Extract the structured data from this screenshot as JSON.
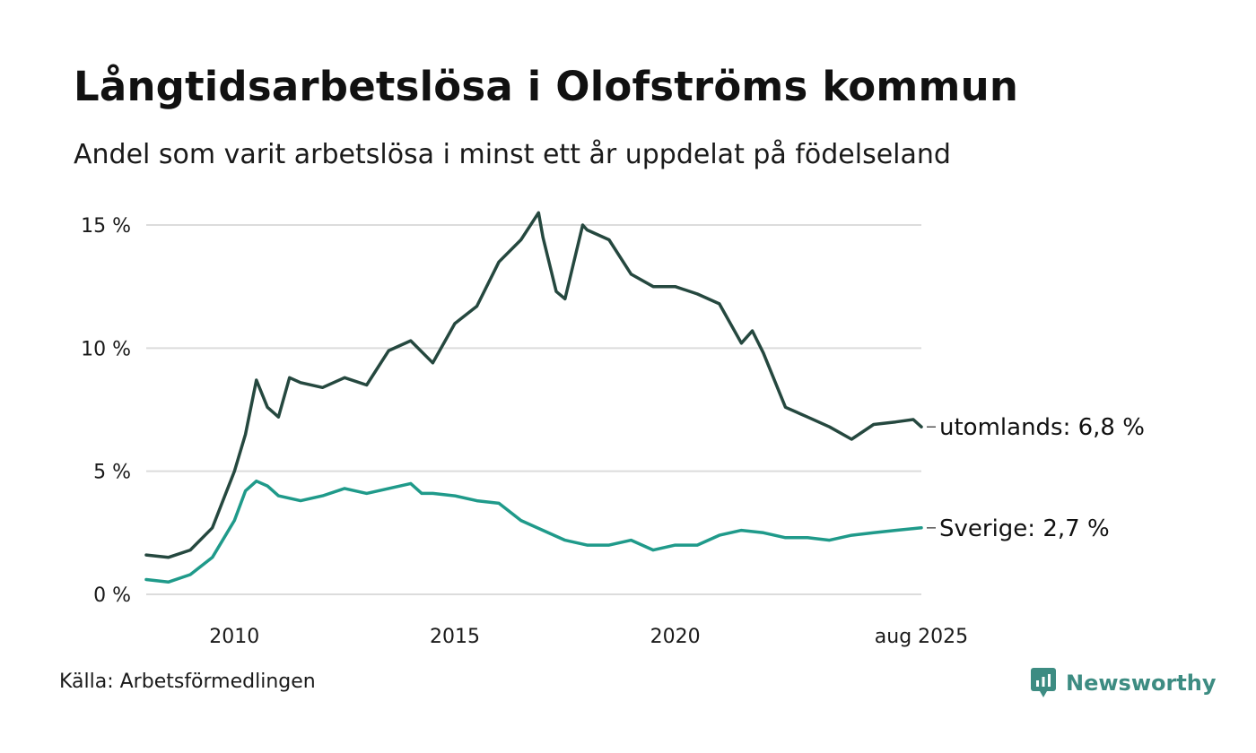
{
  "title": "Långtidsarbetslösa i Olofströms kommun",
  "subtitle": "Andel som varit arbetslösa i minst ett år uppdelat på födelseland",
  "source": "Källa: Arbetsförmedlingen",
  "brand": {
    "name": "Newsworthy",
    "icon": "newsworthy-logo-icon",
    "color": "#3d8c82"
  },
  "chart_data": {
    "type": "line",
    "x_start": "2008-01",
    "x_end": "2025-08",
    "x_ticks": [
      {
        "label": "2010",
        "value": 2010.0
      },
      {
        "label": "2015",
        "value": 2015.0
      },
      {
        "label": "2020",
        "value": 2020.0
      },
      {
        "label": "aug 2025",
        "value": 2025.583
      }
    ],
    "y_ticks": [
      {
        "label": "0 %",
        "value": 0
      },
      {
        "label": "5 %",
        "value": 5
      },
      {
        "label": "10 %",
        "value": 10
      },
      {
        "label": "15 %",
        "value": 15
      }
    ],
    "ylim": [
      0,
      15
    ],
    "grid": true,
    "legend": "direct labels at line ends",
    "series": [
      {
        "name": "utomlands",
        "end_label": "utomlands: 6,8 %",
        "color": "#25483f",
        "x": [
          2008.0,
          2008.5,
          2009.0,
          2009.5,
          2010.0,
          2010.25,
          2010.5,
          2010.75,
          2011.0,
          2011.25,
          2011.5,
          2012.0,
          2012.5,
          2013.0,
          2013.5,
          2014.0,
          2014.5,
          2015.0,
          2015.5,
          2016.0,
          2016.5,
          2016.9,
          2017.0,
          2017.3,
          2017.5,
          2017.9,
          2018.0,
          2018.5,
          2019.0,
          2019.5,
          2020.0,
          2020.5,
          2021.0,
          2021.5,
          2021.75,
          2022.0,
          2022.5,
          2023.0,
          2023.5,
          2024.0,
          2024.5,
          2025.0,
          2025.4,
          2025.583
        ],
        "values": [
          1.6,
          1.5,
          1.8,
          2.7,
          5.0,
          6.5,
          8.7,
          7.6,
          7.2,
          8.8,
          8.6,
          8.4,
          8.8,
          8.5,
          9.9,
          10.3,
          9.4,
          11.0,
          11.7,
          13.5,
          14.4,
          15.5,
          14.5,
          12.3,
          12.0,
          15.0,
          14.8,
          14.4,
          13.0,
          12.5,
          12.5,
          12.2,
          11.8,
          10.2,
          10.7,
          9.8,
          7.6,
          7.2,
          6.8,
          6.3,
          6.9,
          7.0,
          7.1,
          6.8
        ]
      },
      {
        "name": "Sverige",
        "end_label": "Sverige: 2,7 %",
        "color": "#1f9a8a",
        "x": [
          2008.0,
          2008.5,
          2009.0,
          2009.5,
          2010.0,
          2010.25,
          2010.5,
          2010.75,
          2011.0,
          2011.5,
          2012.0,
          2012.5,
          2013.0,
          2013.5,
          2014.0,
          2014.25,
          2014.5,
          2015.0,
          2015.5,
          2016.0,
          2016.5,
          2017.0,
          2017.5,
          2018.0,
          2018.5,
          2019.0,
          2019.5,
          2020.0,
          2020.5,
          2021.0,
          2021.5,
          2022.0,
          2022.5,
          2023.0,
          2023.5,
          2024.0,
          2024.5,
          2025.0,
          2025.583
        ],
        "values": [
          0.6,
          0.5,
          0.8,
          1.5,
          3.0,
          4.2,
          4.6,
          4.4,
          4.0,
          3.8,
          4.0,
          4.3,
          4.1,
          4.3,
          4.5,
          4.1,
          4.1,
          4.0,
          3.8,
          3.7,
          3.0,
          2.6,
          2.2,
          2.0,
          2.0,
          2.2,
          1.8,
          2.0,
          2.0,
          2.4,
          2.6,
          2.5,
          2.3,
          2.3,
          2.2,
          2.4,
          2.5,
          2.6,
          2.7
        ]
      }
    ]
  }
}
